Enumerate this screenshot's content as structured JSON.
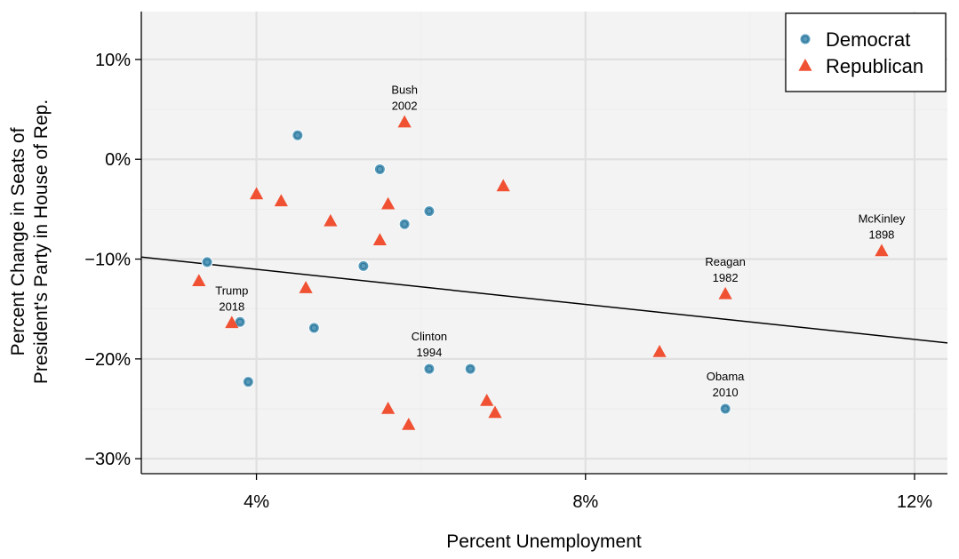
{
  "chart_data": {
    "type": "scatter",
    "xlabel": "Percent Unemployment",
    "ylabel_lines": [
      "Percent Change in Seats of",
      "President's Party in House of Rep."
    ],
    "xlim": [
      2.6,
      12.4
    ],
    "ylim": [
      -31.5,
      14.8
    ],
    "x_ticks": [
      {
        "value": 4,
        "label": "4%"
      },
      {
        "value": 8,
        "label": "8%"
      },
      {
        "value": 12,
        "label": "12%"
      }
    ],
    "y_ticks": [
      {
        "value": 10,
        "label": "10%"
      },
      {
        "value": 0,
        "label": "0%"
      },
      {
        "value": -10,
        "label": "−10%"
      },
      {
        "value": -20,
        "label": "−20%"
      },
      {
        "value": -30,
        "label": "−30%"
      }
    ],
    "grid": true,
    "legend_position": "top-right",
    "series": [
      {
        "name": "Democrat",
        "color": "#569BBD",
        "marker": "circle",
        "points": [
          {
            "x": 3.4,
            "y": -10.3
          },
          {
            "x": 3.8,
            "y": -16.3
          },
          {
            "x": 3.9,
            "y": -22.3
          },
          {
            "x": 4.5,
            "y": 2.4
          },
          {
            "x": 4.7,
            "y": -16.9
          },
          {
            "x": 5.3,
            "y": -10.7
          },
          {
            "x": 5.5,
            "y": -1.0
          },
          {
            "x": 5.8,
            "y": -6.5
          },
          {
            "x": 6.1,
            "y": -5.2
          },
          {
            "x": 6.1,
            "y": -21.0
          },
          {
            "x": 6.6,
            "y": -21.0
          },
          {
            "x": 9.7,
            "y": -25.0
          }
        ]
      },
      {
        "name": "Republican",
        "color": "#F05133",
        "marker": "triangle",
        "points": [
          {
            "x": 3.3,
            "y": -12.2
          },
          {
            "x": 3.7,
            "y": -16.4
          },
          {
            "x": 4.0,
            "y": -3.5
          },
          {
            "x": 4.3,
            "y": -4.2
          },
          {
            "x": 4.6,
            "y": -12.9
          },
          {
            "x": 4.9,
            "y": -6.2
          },
          {
            "x": 5.5,
            "y": -8.1
          },
          {
            "x": 5.6,
            "y": -4.5
          },
          {
            "x": 5.6,
            "y": -25.0
          },
          {
            "x": 5.8,
            "y": 3.7
          },
          {
            "x": 5.85,
            "y": -26.6
          },
          {
            "x": 6.8,
            "y": -24.2
          },
          {
            "x": 6.9,
            "y": -25.4
          },
          {
            "x": 7.0,
            "y": -2.7
          },
          {
            "x": 8.9,
            "y": -19.3
          },
          {
            "x": 9.7,
            "y": -13.5
          },
          {
            "x": 11.6,
            "y": -9.2
          }
        ]
      }
    ],
    "fit_line": {
      "x": [
        2.6,
        12.4
      ],
      "y": [
        -9.8,
        -18.4
      ]
    },
    "annotations": [
      {
        "text": "Bush",
        "x": 5.8,
        "y": 3.7,
        "line": 0
      },
      {
        "text": "2002",
        "x": 5.8,
        "y": 3.7,
        "line": 1
      },
      {
        "text": "Trump",
        "x": 3.7,
        "y": -16.4,
        "line": 0
      },
      {
        "text": "2018",
        "x": 3.7,
        "y": -16.4,
        "line": 1
      },
      {
        "text": "Clinton",
        "x": 6.1,
        "y": -21.0,
        "line": 0
      },
      {
        "text": "1994",
        "x": 6.1,
        "y": -21.0,
        "line": 1
      },
      {
        "text": "Reagan",
        "x": 9.7,
        "y": -13.5,
        "line": 0
      },
      {
        "text": "1982",
        "x": 9.7,
        "y": -13.5,
        "line": 1
      },
      {
        "text": "McKinley",
        "x": 11.6,
        "y": -9.2,
        "line": 0
      },
      {
        "text": "1898",
        "x": 11.6,
        "y": -9.2,
        "line": 1
      },
      {
        "text": "Obama",
        "x": 9.7,
        "y": -25.0,
        "line": 0
      },
      {
        "text": "2010",
        "x": 9.7,
        "y": -25.0,
        "line": 1
      }
    ]
  }
}
